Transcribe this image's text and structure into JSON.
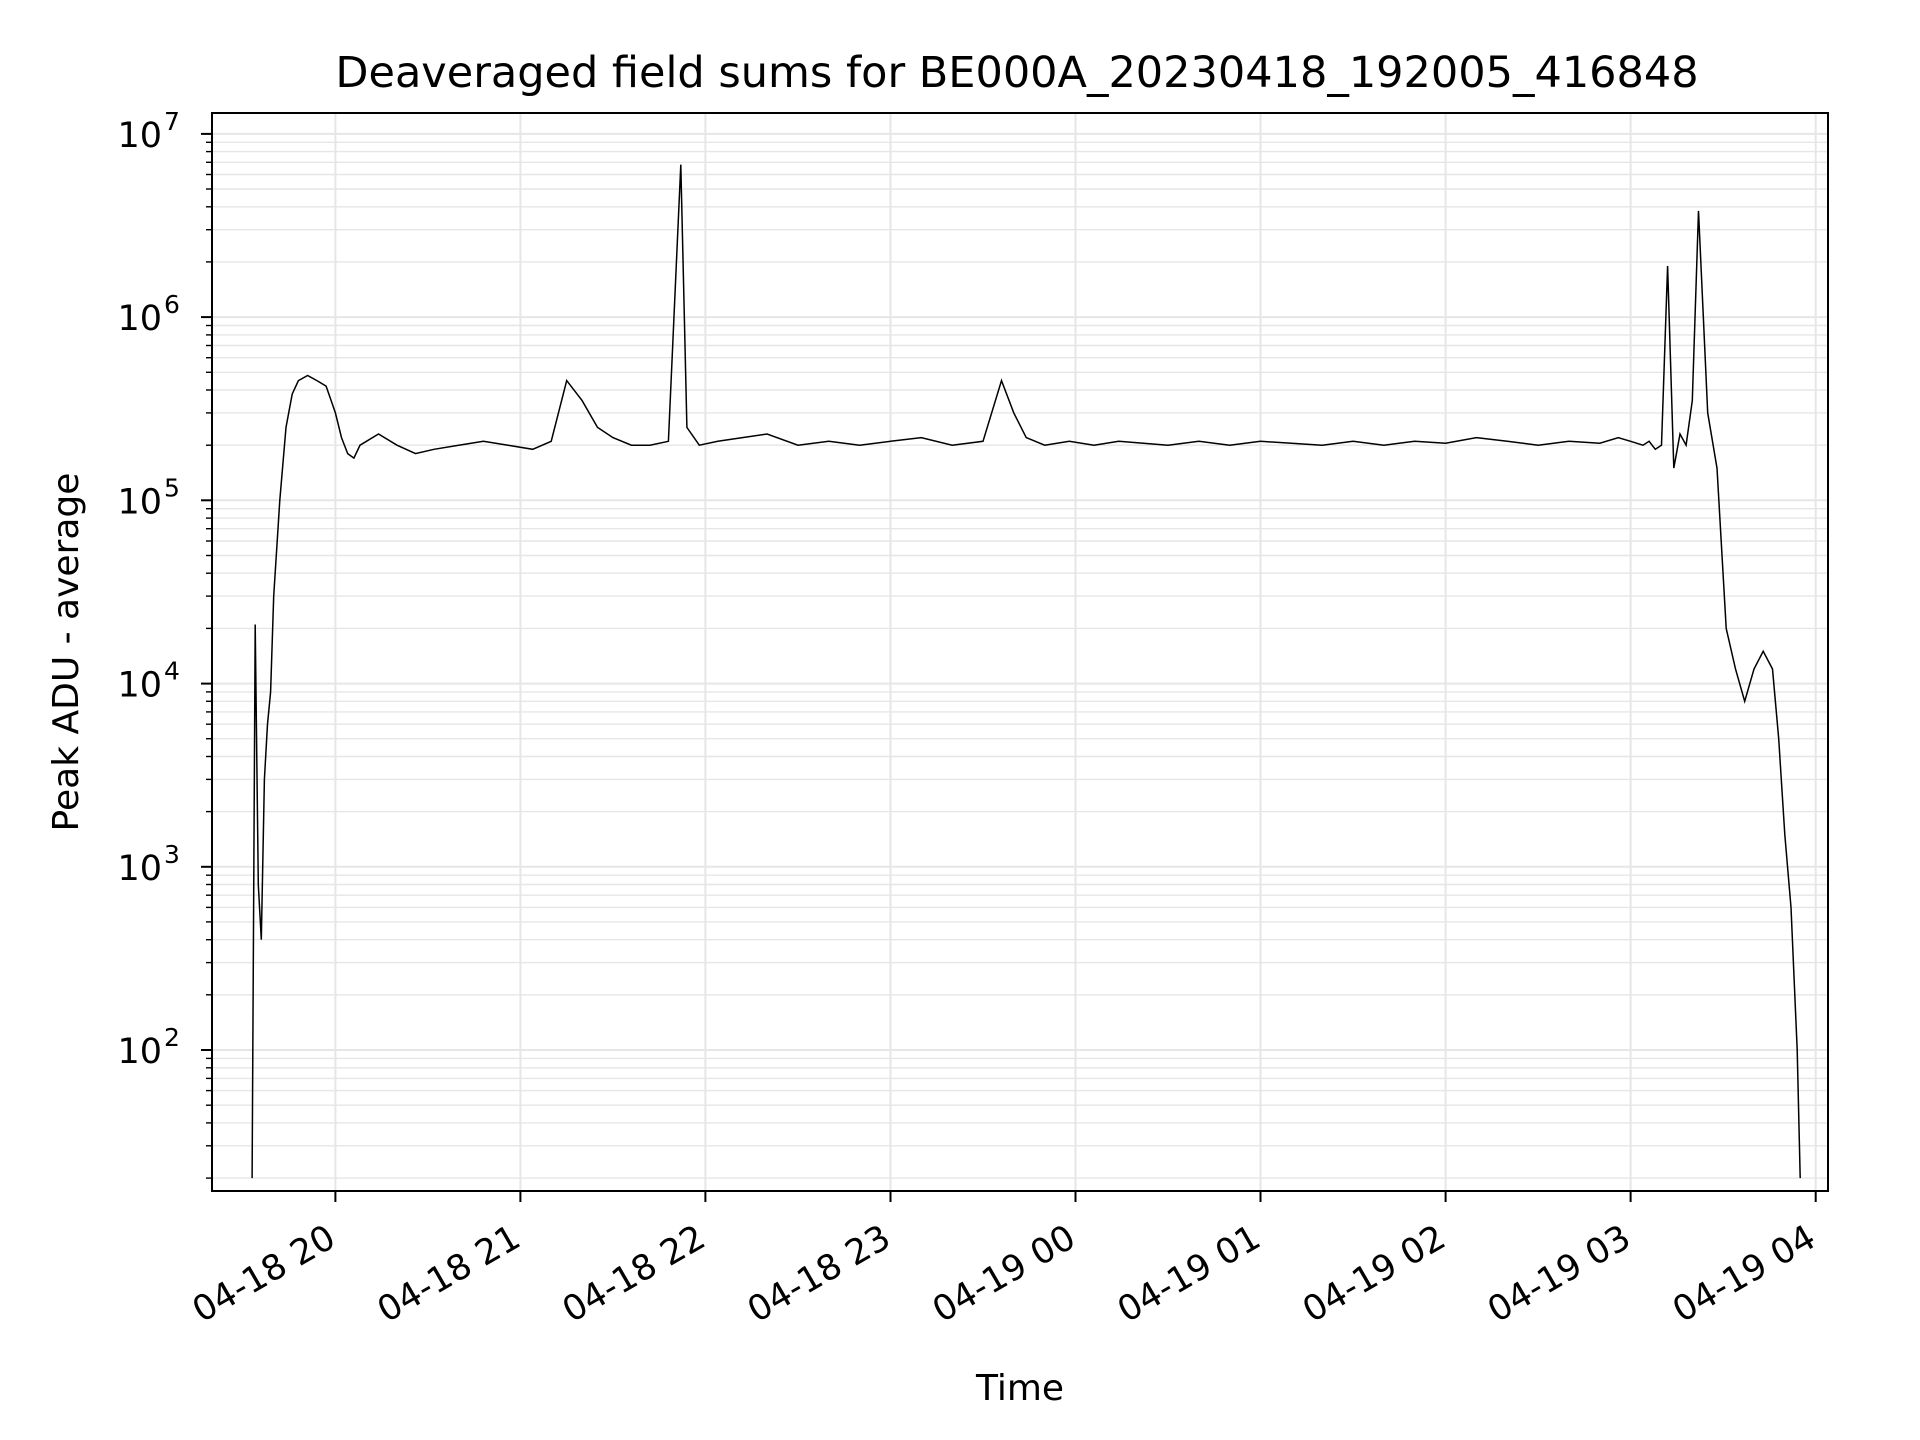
{
  "chart_data": {
    "type": "line",
    "title": "Deaveraged field sums for BE000A_20230418_192005_416848",
    "xlabel": "Time",
    "ylabel": "Peak ADU - average",
    "yscale": "log",
    "xlim": [
      "2023-04-18 19:20",
      "2023-04-19 04:04"
    ],
    "ylim": [
      17,
      13000000
    ],
    "grid": true,
    "legend": "none",
    "line_color": "#000000",
    "grid_color": "#e6e6e6",
    "xticks": [
      {
        "value": "2023-04-18 20:00",
        "label": "04-18 20"
      },
      {
        "value": "2023-04-18 21:00",
        "label": "04-18 21"
      },
      {
        "value": "2023-04-18 22:00",
        "label": "04-18 22"
      },
      {
        "value": "2023-04-18 23:00",
        "label": "04-18 23"
      },
      {
        "value": "2023-04-19 00:00",
        "label": "04-19 00"
      },
      {
        "value": "2023-04-19 01:00",
        "label": "04-19 01"
      },
      {
        "value": "2023-04-19 02:00",
        "label": "04-19 02"
      },
      {
        "value": "2023-04-19 03:00",
        "label": "04-19 03"
      },
      {
        "value": "2023-04-19 04:00",
        "label": "04-19 04"
      }
    ],
    "yticks": [
      {
        "value": 100,
        "base": "10",
        "exp": "2"
      },
      {
        "value": 1000,
        "base": "10",
        "exp": "3"
      },
      {
        "value": 10000,
        "base": "10",
        "exp": "4"
      },
      {
        "value": 100000,
        "base": "10",
        "exp": "5"
      },
      {
        "value": 1000000,
        "base": "10",
        "exp": "6"
      },
      {
        "value": 10000000,
        "base": "10",
        "exp": "7"
      }
    ],
    "series": [
      {
        "x": [
          "2023-04-18 19:33",
          "2023-04-18 19:34",
          "2023-04-18 19:35",
          "2023-04-18 19:36",
          "2023-04-18 19:37",
          "2023-04-18 19:38",
          "2023-04-18 19:39",
          "2023-04-18 19:40",
          "2023-04-18 19:42",
          "2023-04-18 19:44",
          "2023-04-18 19:46",
          "2023-04-18 19:48",
          "2023-04-18 19:51",
          "2023-04-18 19:54",
          "2023-04-18 19:57",
          "2023-04-18 20:00",
          "2023-04-18 20:02",
          "2023-04-18 20:04",
          "2023-04-18 20:06",
          "2023-04-18 20:08",
          "2023-04-18 20:14",
          "2023-04-18 20:20",
          "2023-04-18 20:26",
          "2023-04-18 20:32",
          "2023-04-18 20:40",
          "2023-04-18 20:48",
          "2023-04-18 20:56",
          "2023-04-18 21:04",
          "2023-04-18 21:10",
          "2023-04-18 21:15",
          "2023-04-18 21:20",
          "2023-04-18 21:25",
          "2023-04-18 21:30",
          "2023-04-18 21:36",
          "2023-04-18 21:42",
          "2023-04-18 21:48",
          "2023-04-18 21:52",
          "2023-04-18 21:54",
          "2023-04-18 21:58",
          "2023-04-18 22:04",
          "2023-04-18 22:12",
          "2023-04-18 22:20",
          "2023-04-18 22:30",
          "2023-04-18 22:40",
          "2023-04-18 22:50",
          "2023-04-18 23:00",
          "2023-04-18 23:10",
          "2023-04-18 23:20",
          "2023-04-18 23:30",
          "2023-04-18 23:36",
          "2023-04-18 23:40",
          "2023-04-18 23:44",
          "2023-04-18 23:50",
          "2023-04-18 23:58",
          "2023-04-19 00:06",
          "2023-04-19 00:14",
          "2023-04-19 00:22",
          "2023-04-19 00:30",
          "2023-04-19 00:40",
          "2023-04-19 00:50",
          "2023-04-19 01:00",
          "2023-04-19 01:10",
          "2023-04-19 01:20",
          "2023-04-19 01:30",
          "2023-04-19 01:40",
          "2023-04-19 01:50",
          "2023-04-19 02:00",
          "2023-04-19 02:10",
          "2023-04-19 02:20",
          "2023-04-19 02:30",
          "2023-04-19 02:40",
          "2023-04-19 02:50",
          "2023-04-19 02:56",
          "2023-04-19 03:00",
          "2023-04-19 03:04",
          "2023-04-19 03:06",
          "2023-04-19 03:08",
          "2023-04-19 03:10",
          "2023-04-19 03:12",
          "2023-04-19 03:14",
          "2023-04-19 03:16",
          "2023-04-19 03:18",
          "2023-04-19 03:20",
          "2023-04-19 03:22",
          "2023-04-19 03:25",
          "2023-04-19 03:28",
          "2023-04-19 03:31",
          "2023-04-19 03:34",
          "2023-04-19 03:37",
          "2023-04-19 03:40",
          "2023-04-19 03:43",
          "2023-04-19 03:46",
          "2023-04-19 03:48",
          "2023-04-19 03:50",
          "2023-04-19 03:52",
          "2023-04-19 03:54",
          "2023-04-19 03:55"
        ],
        "y": [
          20,
          21000,
          800,
          400,
          3000,
          6000,
          9000,
          30000,
          100000,
          250000,
          380000,
          450000,
          480000,
          450000,
          420000,
          300000,
          220000,
          180000,
          170000,
          200000,
          230000,
          200000,
          180000,
          190000,
          200000,
          210000,
          200000,
          190000,
          210000,
          450000,
          350000,
          250000,
          220000,
          200000,
          200000,
          210000,
          6800000,
          250000,
          200000,
          210000,
          220000,
          230000,
          200000,
          210000,
          200000,
          210000,
          220000,
          200000,
          210000,
          450000,
          300000,
          220000,
          200000,
          210000,
          200000,
          210000,
          205000,
          200000,
          210000,
          200000,
          210000,
          205000,
          200000,
          210000,
          200000,
          210000,
          205000,
          220000,
          210000,
          200000,
          210000,
          205000,
          220000,
          210000,
          200000,
          210000,
          190000,
          200000,
          1900000,
          150000,
          230000,
          200000,
          350000,
          3800000,
          300000,
          150000,
          20000,
          12000,
          8000,
          12000,
          15000,
          12000,
          5000,
          1500,
          600,
          100,
          20
        ]
      }
    ]
  }
}
